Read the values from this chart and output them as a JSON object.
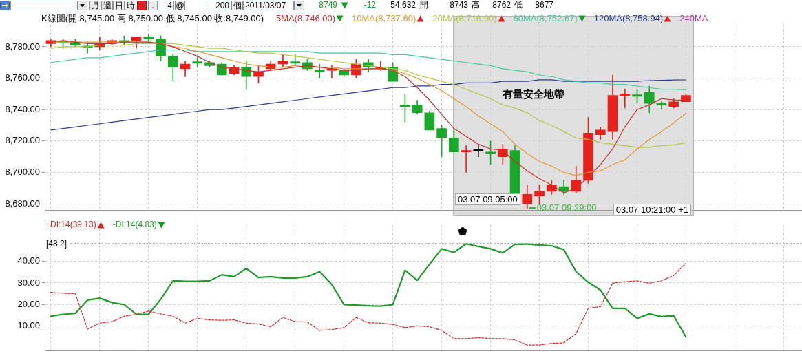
{
  "chart_data": [
    {
      "type": "candlestick",
      "title": "K線圖(開:8,745.00 高:8,750.00 低:8,745.00 收:8,749.00)",
      "categories": [
        null,
        null,
        null,
        null,
        null,
        null,
        null,
        null,
        null,
        null,
        null,
        null,
        null,
        null,
        null,
        null,
        null,
        null,
        null,
        null,
        null,
        null,
        null,
        null,
        null,
        null,
        null,
        null,
        null,
        null,
        null,
        null,
        null,
        null,
        null,
        null,
        null,
        null,
        null,
        null,
        null,
        null,
        null,
        null,
        null,
        null,
        null,
        null,
        null,
        null,
        null,
        null,
        null,
        null,
        null,
        null,
        null,
        null,
        null,
        null,
        null,
        null
      ],
      "ohlc": [
        [
          8782,
          8785,
          8780,
          8784
        ],
        [
          8783.5,
          8785,
          8779,
          8782.5
        ],
        [
          8783,
          8785,
          8780,
          8781
        ],
        [
          8780.5,
          8783,
          8776,
          8779.5
        ],
        [
          8780,
          8786,
          8778,
          8782
        ],
        [
          8782,
          8785,
          8781,
          8784
        ],
        [
          8784,
          8787,
          8781,
          8783
        ],
        [
          8784,
          8786,
          8779,
          8786
        ],
        [
          8786,
          8788,
          8784,
          8785
        ],
        [
          8785,
          8787,
          8771,
          8774
        ],
        [
          8774,
          8775,
          8758,
          8767
        ],
        [
          8766,
          8771,
          8761,
          8769
        ],
        [
          8770.5,
          8774,
          8767,
          8769.5
        ],
        [
          8770,
          8771,
          8767,
          8768
        ],
        [
          8769,
          8770,
          8762,
          8762
        ],
        [
          8763,
          8768,
          8762,
          8767
        ],
        [
          8767,
          8771,
          8753,
          8761
        ],
        [
          8761,
          8768,
          8757,
          8764
        ],
        [
          8766,
          8771,
          8765,
          8769
        ],
        [
          8769,
          8775,
          8767,
          8771
        ],
        [
          8770.5,
          8775,
          8768,
          8769.5
        ],
        [
          8770,
          8772,
          8765,
          8766
        ],
        [
          8765,
          8769,
          8760,
          8764
        ],
        [
          8765,
          8768,
          8760,
          8766
        ],
        [
          8765,
          8766,
          8761,
          8762
        ],
        [
          8762,
          8772,
          8760,
          8769
        ],
        [
          8770,
          8772,
          8764,
          8767
        ],
        [
          8766,
          8771,
          8765,
          8767
        ],
        [
          8767,
          8770,
          8758,
          8758
        ],
        [
          8743,
          8750,
          8732,
          8742
        ],
        [
          8743,
          8746,
          8737,
          8738
        ],
        [
          8738,
          8739,
          8727,
          8727
        ],
        [
          8728,
          8730,
          8710,
          8722
        ],
        [
          8722,
          8728,
          8713,
          8713
        ],
        [
          8713,
          8717,
          8700,
          8714
        ],
        [
          8713.5,
          8718,
          8710,
          8714.5
        ],
        [
          8713,
          8720,
          8705,
          8712
        ],
        [
          8710,
          8718,
          8705,
          8715
        ],
        [
          8714,
          8717,
          8680,
          8680
        ],
        [
          8680,
          8692,
          8677,
          8686
        ],
        [
          8685,
          8692,
          8680,
          8688
        ],
        [
          8688,
          8695,
          8686,
          8692
        ],
        [
          8691,
          8695,
          8686,
          8688
        ],
        [
          8688,
          8704,
          8687,
          8695
        ],
        [
          8695,
          8735,
          8693,
          8725
        ],
        [
          8724,
          8729,
          8721,
          8727
        ],
        [
          8726,
          8762,
          8721,
          8749
        ],
        [
          8749,
          8753,
          8741,
          8750
        ],
        [
          8749.5,
          8753,
          8744,
          8748.5
        ],
        [
          8751,
          8755,
          8738,
          8744
        ],
        [
          8744,
          8745,
          8740,
          8743
        ],
        [
          8742,
          8747,
          8741,
          8745
        ],
        [
          8745,
          8750,
          8745,
          8749
        ],
        null,
        null,
        null,
        null,
        null,
        null,
        null,
        null,
        null
      ],
      "colors": [
        "#e6211c",
        "#1aa82a",
        "#1aa82a",
        "#1aa82a",
        "#e6211c",
        "#e6211c",
        "#1aa82a",
        "#e6211c",
        "#1aa82a",
        "#1aa82a",
        "#1aa82a",
        "#e6211c",
        "#1aa82a",
        "#1aa82a",
        "#1aa82a",
        "#e6211c",
        "#1aa82a",
        "#e6211c",
        "#e6211c",
        "#e6211c",
        "#1aa82a",
        "#1aa82a",
        "#1aa82a",
        "#e6211c",
        "#1aa82a",
        "#e6211c",
        "#1aa82a",
        "#e6211c",
        "#1aa82a",
        "#1aa82a",
        "#1aa82a",
        "#1aa82a",
        "#1aa82a",
        "#1aa82a",
        "#e6211c",
        "#000000",
        "#1aa82a",
        "#e6211c",
        "#1aa82a",
        "#e6211c",
        "#e6211c",
        "#e6211c",
        "#1aa82a",
        "#e6211c",
        "#e6211c",
        "#e6211c",
        "#e6211c",
        "#e6211c",
        "#1aa82a",
        "#1aa82a",
        "#1aa82a",
        "#e6211c",
        "#e6211c",
        null,
        null,
        null,
        null,
        null,
        null,
        null,
        null,
        null
      ],
      "series": [
        {
          "type": "line",
          "name": "5MA(8,746.00)",
          "color": "#c9302c",
          "values": [
            8783,
            8784,
            8783,
            8782,
            8782,
            8782,
            8783,
            8783,
            8783,
            8782,
            8780,
            8777,
            8774,
            8770,
            8767,
            8766,
            8765,
            8764,
            8765,
            8766,
            8767,
            8768,
            8767,
            8766,
            8765,
            8765,
            8766,
            8766,
            8765,
            8761,
            8754,
            8746,
            8737,
            8728,
            8723,
            8718,
            8715,
            8714,
            8707,
            8701,
            8696,
            8692,
            8687,
            8690,
            8697,
            8705,
            8715,
            8729,
            8740,
            8743,
            8747,
            8746.2,
            8746,
            null,
            null,
            null,
            null,
            null,
            null,
            null,
            null,
            null
          ]
        },
        {
          "type": "line",
          "name": "10MA(8,737.60)",
          "color": "#e6952e",
          "values": [
            8783,
            8783,
            8783,
            8783,
            8783,
            8783,
            8783,
            8783,
            8783,
            8782,
            8780,
            8779,
            8777,
            8775,
            8773,
            8771,
            8769,
            8768,
            8767,
            8767,
            8768,
            8767,
            8767,
            8767,
            8766,
            8766,
            8766,
            8766,
            8765,
            8763,
            8760,
            8756,
            8752,
            8747,
            8742,
            8736,
            8731,
            8726,
            8718,
            8712,
            8707,
            8704,
            8700,
            8698,
            8700,
            8701,
            8705,
            8708,
            8715,
            8721,
            8726,
            8731.5,
            8737.6,
            null,
            null,
            null,
            null,
            null,
            null,
            null,
            null,
            null
          ]
        },
        {
          "type": "line",
          "name": "20MA(8,718.90)",
          "color": "#b5c547",
          "values": [
            8779,
            8780,
            8780,
            8780,
            8781,
            8781,
            8781,
            8782,
            8782,
            8782,
            8782,
            8781,
            8780,
            8779,
            8779,
            8778,
            8777,
            8776,
            8776,
            8775,
            8774,
            8773,
            8772,
            8771,
            8770,
            8769,
            8768,
            8767,
            8766,
            8765,
            8762,
            8760,
            8758,
            8756,
            8753,
            8750,
            8747,
            8743,
            8741,
            8738,
            8733,
            8730,
            8726,
            8722,
            8721,
            8719,
            8718,
            8717,
            8716,
            8716,
            8717,
            8717.6,
            8718.9,
            null,
            null,
            null,
            null,
            null,
            null,
            null,
            null,
            null
          ]
        },
        {
          "type": "line",
          "name": "60MA(8,752.67)",
          "color": "#45c7a0",
          "values": [
            8770,
            8771,
            8772,
            8773,
            8773,
            8774,
            8775,
            8776,
            8777,
            8778,
            8778,
            8778,
            8777,
            8777,
            8777,
            8777,
            8777,
            8777,
            8777,
            8777,
            8777,
            8777,
            8776,
            8776,
            8776,
            8776,
            8776,
            8776,
            8775,
            8775,
            8774,
            8773,
            8772,
            8771,
            8770,
            8769,
            8768,
            8766,
            8765,
            8764,
            8762,
            8761,
            8759,
            8758,
            8757,
            8757,
            8756,
            8756,
            8755,
            8754,
            8753,
            8753,
            8752.67,
            null,
            null,
            null,
            null,
            null,
            null,
            null,
            null,
            null
          ]
        },
        {
          "type": "line",
          "name": "120MA(8,758.94)",
          "color": "#2c3c8f",
          "values": [
            8727,
            8728,
            8729,
            8730,
            8731,
            8732,
            8733,
            8734,
            8735,
            8736,
            8737,
            8738,
            8739,
            8740,
            8740,
            8741,
            8742,
            8743,
            8744,
            8745,
            8746,
            8747,
            8748,
            8749,
            8750,
            8751,
            8752,
            8753,
            8754,
            8754,
            8755,
            8755,
            8756,
            8756,
            8757,
            8757,
            8757,
            8758,
            8758,
            8758,
            8759,
            8759,
            8758,
            8758,
            8758,
            8758,
            8758,
            8758,
            8758,
            8758.5,
            8758.7,
            8758.9,
            8758.94,
            null,
            null,
            null,
            null,
            null,
            null,
            null,
            null,
            null
          ]
        }
      ],
      "ylim": [
        8676,
        8794
      ],
      "yticks": [
        {
          "value": 8680,
          "label": "8,680.00"
        },
        {
          "value": 8700,
          "label": "8,700.00"
        },
        {
          "value": 8720,
          "label": "8,720.00"
        },
        {
          "value": 8740,
          "label": "8,740.00"
        },
        {
          "value": 8760,
          "label": "8,760.00"
        },
        {
          "value": 8780,
          "label": "8,780.00"
        }
      ],
      "grid": true,
      "legend": "top",
      "tick_labels": "y",
      "marker": "none",
      "line_style": "solid",
      "annotations": [
        "有量安全地帶",
        "03.07 09:05:00",
        "03.07 09:29:00",
        "03.07 10:21:00 +1",
        "240MA",
        "月",
        "週",
        "日",
        "時",
        ".",
        "4",
        "@",
        "200",
        "個",
        "2011/03/07",
        "8749",
        "-12",
        "54,632",
        "開",
        "8743",
        "高",
        "8762",
        "低",
        "8677"
      ]
    },
    {
      "type": "line",
      "categories": [
        null,
        null,
        null,
        null,
        null,
        null,
        null,
        null,
        null,
        null,
        null,
        null,
        null,
        null,
        null,
        null,
        null,
        null,
        null,
        null,
        null,
        null,
        null,
        null,
        null,
        null,
        null,
        null,
        null,
        null,
        null,
        null,
        null,
        null,
        null,
        null,
        null,
        null,
        null,
        null,
        null,
        null,
        null,
        null,
        null,
        null,
        null,
        null,
        null,
        null,
        null,
        null,
        null,
        null,
        null,
        null,
        null,
        null,
        null,
        null,
        null,
        null
      ],
      "series": [
        {
          "name": "+DI:14(39.13)",
          "color": "#d42a2a",
          "line_style": "dashed",
          "values": [
            25.6,
            25.2,
            25,
            8.5,
            11.3,
            12,
            14.5,
            15.4,
            16.9,
            15.6,
            14.5,
            11.3,
            13.5,
            12.8,
            12.6,
            12.8,
            11.3,
            10.9,
            9.6,
            13.9,
            12,
            11.8,
            7.9,
            8.3,
            9.2,
            13.9,
            11.5,
            11.3,
            10.7,
            9.2,
            10,
            9.6,
            7.9,
            4.1,
            4.1,
            4.5,
            4.1,
            4.1,
            3.4,
            1.1,
            1.1,
            1.9,
            2.1,
            6.4,
            18.2,
            19,
            29.9,
            30.6,
            31,
            29.9,
            31,
            33.5,
            39.13,
            null,
            null,
            null,
            null,
            null,
            null,
            null,
            null,
            null
          ]
        },
        {
          "name": "-DI:14(4.83)",
          "color": "#1f9b2b",
          "values": [
            14.5,
            15.4,
            15.8,
            22,
            22.9,
            20.9,
            19.9,
            15.4,
            15.4,
            22.4,
            31,
            30.8,
            30.8,
            31,
            33.8,
            32.9,
            36.8,
            32.5,
            32.9,
            32.3,
            32.3,
            32.9,
            35.3,
            29.3,
            19.9,
            19.7,
            19.4,
            19.2,
            19.9,
            35.9,
            31.2,
            38.7,
            45.9,
            44.2,
            48.2,
            47,
            45.9,
            44,
            48,
            48.1,
            47.7,
            47.3,
            45.5,
            35.3,
            30.3,
            26.7,
            18.2,
            18.2,
            13.5,
            15.6,
            14.3,
            14.7,
            4.83,
            null,
            null,
            null,
            null,
            null,
            null,
            null,
            null,
            null
          ]
        }
      ],
      "ylim": [
        -1.5,
        57
      ],
      "yticks": [
        {
          "value": 10,
          "label": "10.00"
        },
        {
          "value": 20,
          "label": "20.00"
        },
        {
          "value": 30,
          "label": "30.00"
        },
        {
          "value": 40,
          "label": "40.00"
        }
      ],
      "grid": true,
      "legend": "top left",
      "tick_labels": "y",
      "marker": "none",
      "line_style": "solid",
      "ref_lines": [
        {
          "axis": "y",
          "value": 48.2,
          "label": "[48.2]",
          "line_style": "dashed",
          "color": "#000000"
        }
      ]
    }
  ]
}
